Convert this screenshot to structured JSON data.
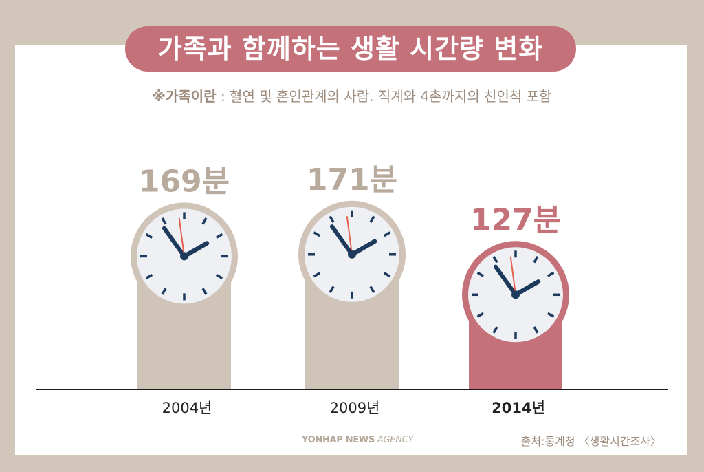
{
  "title": "가족과 함께하는 생활 시간량 변화",
  "note": {
    "prefix": "※가족이란",
    "text": " : 혈연 및 혼인관계의 사람. 직계와 4촌까지의 친인척 포함"
  },
  "colors": {
    "background": "#d2c6ba",
    "bar": "#d0c4b8",
    "highlight": "#c4717a",
    "label": "#b8aa9c",
    "clock_face": "#eef0f4",
    "hand": "#1d3a5c",
    "second_hand": "#e2624f"
  },
  "chart_data": {
    "type": "bar",
    "categories": [
      "2004년",
      "2009년",
      "2014년"
    ],
    "values": [
      169,
      171,
      127
    ],
    "value_labels": [
      "169분",
      "171분",
      "127분"
    ],
    "highlight_index": 2,
    "unit": "분",
    "ylim": [
      0,
      240
    ]
  },
  "footer": {
    "logo_bold": "YONHAP NEWS",
    "logo_light": " AGENCY",
    "source": "출처:통계청 〈생활시간조사〉"
  },
  "icons": [
    "clock-icon"
  ]
}
